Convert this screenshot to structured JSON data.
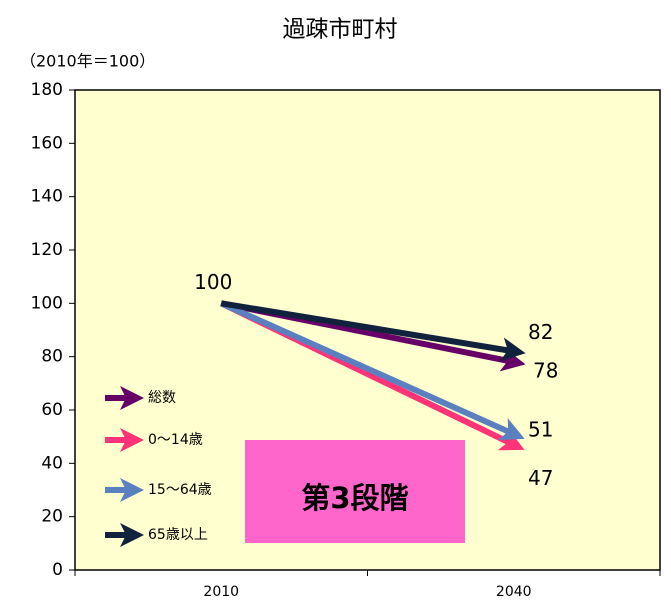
{
  "chart_data": {
    "type": "line",
    "title": "過疎市町村",
    "subtitle": "（2010年＝100）",
    "annotation": "第3段階",
    "categories": [
      "2010",
      "2040"
    ],
    "series": [
      {
        "name": "総数",
        "color": "#660066",
        "values": [
          100,
          78
        ]
      },
      {
        "name": "0〜14歳",
        "color": "#ff3377",
        "values": [
          100,
          47
        ]
      },
      {
        "name": "15〜64歳",
        "color": "#5b80c0",
        "values": [
          100,
          51
        ]
      },
      {
        "name": "65歳以上",
        "color": "#11223d",
        "values": [
          100,
          82
        ]
      }
    ],
    "ylim": [
      0,
      180
    ],
    "yticks": [
      0,
      20,
      40,
      60,
      80,
      100,
      120,
      140,
      160,
      180
    ],
    "grid": false
  }
}
